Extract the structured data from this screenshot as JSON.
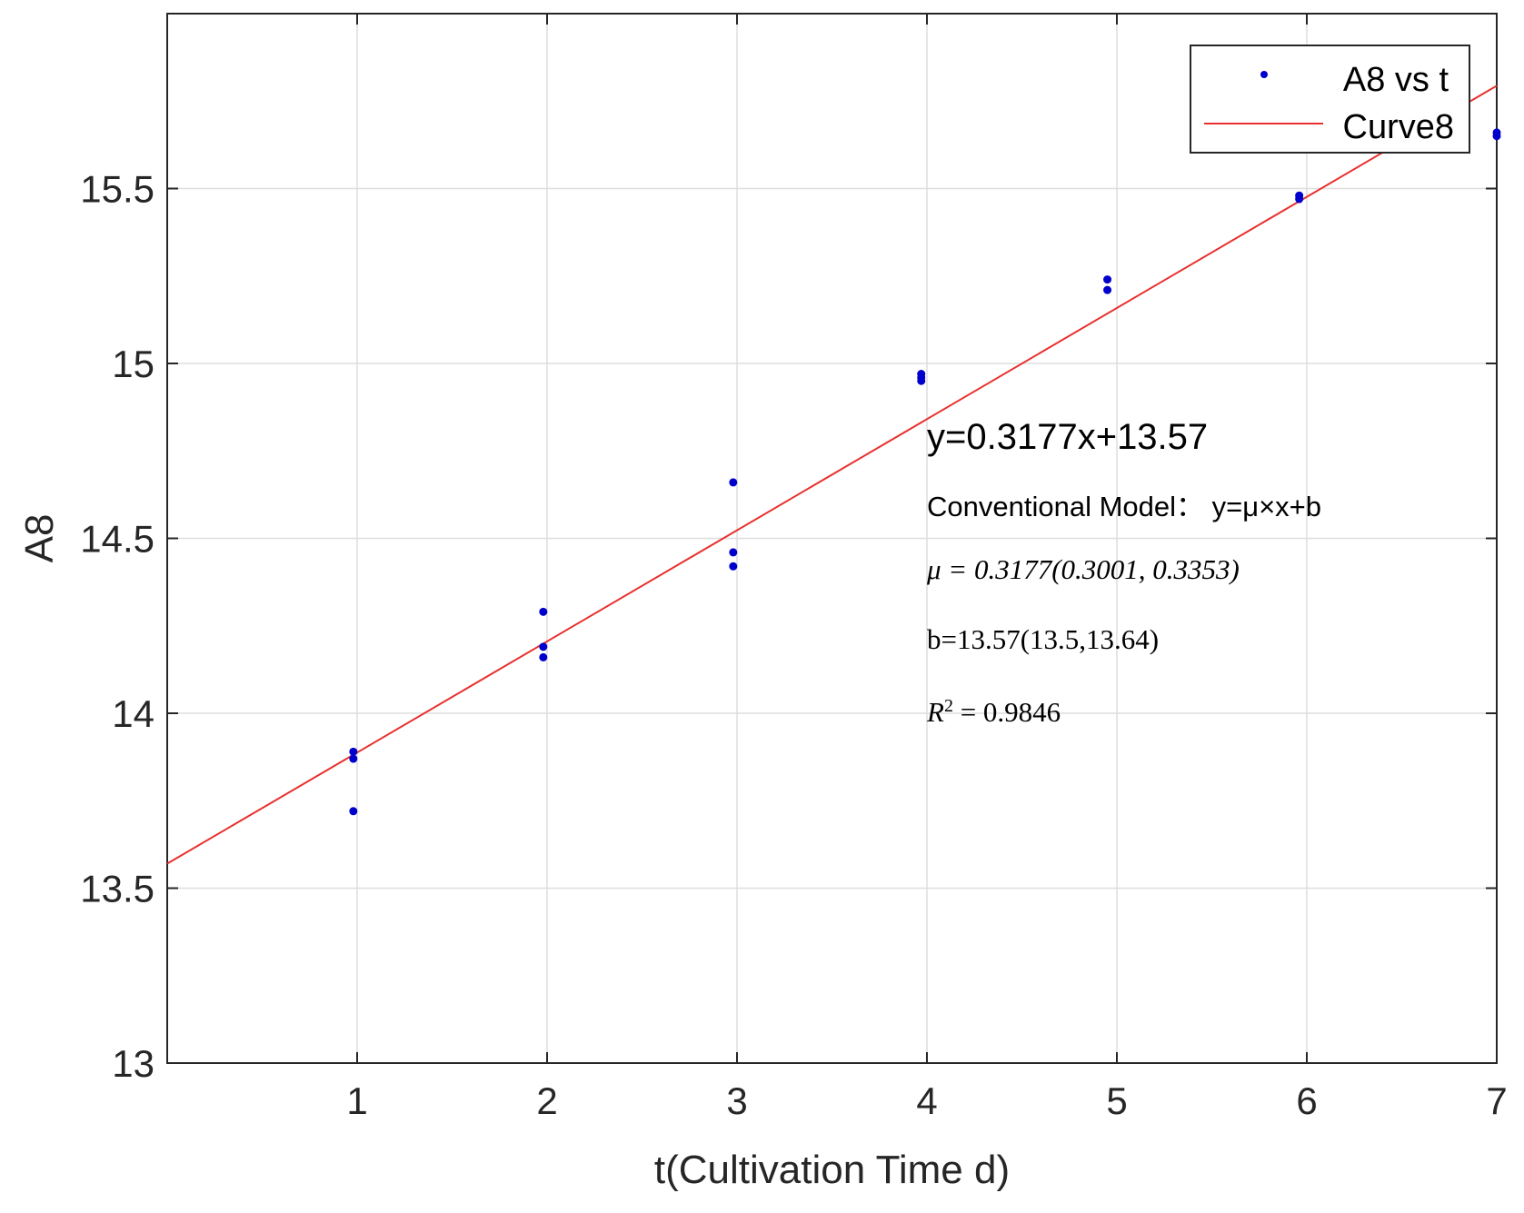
{
  "chart_data": {
    "type": "scatter",
    "title": "",
    "xlabel": "t(Cultivation Time d)",
    "ylabel": "A8",
    "xlim": [
      0,
      7
    ],
    "ylim": [
      13,
      16
    ],
    "xticks": [
      1,
      2,
      3,
      4,
      5,
      6,
      7
    ],
    "xtick_labels": [
      "1",
      "2",
      "3",
      "4",
      "5",
      "6",
      "7"
    ],
    "yticks": [
      13,
      13.5,
      14,
      14.5,
      15,
      15.5
    ],
    "ytick_labels": [
      "13",
      "13.5",
      "14",
      "14.5",
      "15",
      "15.5"
    ],
    "grid": true,
    "legend_position": "top-right",
    "series": [
      {
        "name": "A8 vs t",
        "kind": "points",
        "color": "#0000cc",
        "points": [
          [
            0.98,
            13.89
          ],
          [
            0.98,
            13.87
          ],
          [
            0.98,
            13.72
          ],
          [
            1.98,
            14.29
          ],
          [
            1.98,
            14.19
          ],
          [
            1.98,
            14.16
          ],
          [
            2.98,
            14.66
          ],
          [
            2.98,
            14.46
          ],
          [
            2.98,
            14.42
          ],
          [
            3.97,
            14.97
          ],
          [
            3.97,
            14.96
          ],
          [
            3.97,
            14.95
          ],
          [
            4.95,
            15.24
          ],
          [
            4.95,
            15.21
          ],
          [
            5.96,
            15.48
          ],
          [
            5.96,
            15.47
          ],
          [
            7.0,
            15.66
          ],
          [
            7.0,
            15.65
          ]
        ]
      },
      {
        "name": "Curve8",
        "kind": "line",
        "color": "#e8312e",
        "slope": 0.3177,
        "intercept": 13.57,
        "x_range": [
          0,
          7
        ]
      }
    ],
    "annotations": {
      "equation": "y=0.3177x+13.57",
      "model": "Conventional Model： y=μ×x+b",
      "mu": "μ = 0.3177(0.3001, 0.3353)",
      "b": "b=13.57(13.5,13.64)",
      "r2_symbol": "R",
      "r2_exponent": "2",
      "r2_value": " = 0.9846"
    }
  }
}
